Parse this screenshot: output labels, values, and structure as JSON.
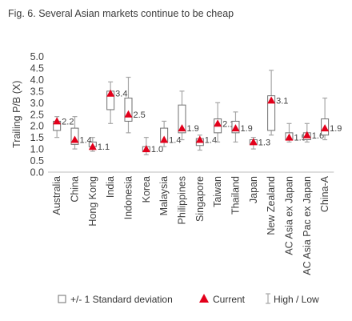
{
  "title": "Fig. 6. Several Asian markets continue to be cheap",
  "colors": {
    "box": "#6f6f6f",
    "whisker": "#a6a6a6",
    "marker": "#e3001b",
    "text": "#404040"
  },
  "chart_data": {
    "type": "box",
    "title": "Fig. 6. Several Asian markets continue to be cheap",
    "ylabel": "Trailing P/B (X)",
    "ylim": [
      0,
      5
    ],
    "yticks": [
      "0.0",
      "0.5",
      "1.0",
      "1.5",
      "2.0",
      "2.5",
      "3.0",
      "3.5",
      "4.0",
      "4.5",
      "5.0"
    ],
    "categories": [
      "Australia",
      "China",
      "Hong Kong",
      "India",
      "Indonesia",
      "Korea",
      "Malaysia",
      "Philippines",
      "Singapore",
      "Taiwan",
      "Thailand",
      "Japan",
      "New Zealand",
      "AC Asia ex Japan",
      "AC Asia Pac ex Japan",
      "China-A"
    ],
    "series": [
      {
        "name": "+/- 1 Standard deviation",
        "lower": [
          1.8,
          1.2,
          1.1,
          2.7,
          2.2,
          0.9,
          1.3,
          1.7,
          1.15,
          1.7,
          1.7,
          1.2,
          1.8,
          1.4,
          1.4,
          1.6
        ],
        "upper": [
          2.2,
          1.9,
          1.3,
          3.5,
          3.2,
          1.1,
          1.9,
          2.9,
          1.45,
          2.3,
          2.2,
          1.4,
          3.3,
          1.7,
          1.7,
          2.3
        ]
      },
      {
        "name": "Current",
        "values": [
          2.2,
          1.4,
          1.1,
          3.4,
          2.5,
          1.0,
          1.4,
          1.9,
          1.4,
          2.1,
          1.9,
          1.3,
          3.1,
          1.5,
          1.6,
          1.9
        ],
        "labels": [
          "2.2",
          "1.4",
          "1.1",
          "3.4",
          "2.5",
          "1.0",
          "1.4",
          "1.9",
          "1.4",
          "2.1",
          "1.9",
          "1.3",
          "3.1",
          "1.5",
          "1.6",
          "1.9"
        ]
      },
      {
        "name": "High / Low",
        "low": [
          1.5,
          1.0,
          0.9,
          2.1,
          1.7,
          0.75,
          1.1,
          1.4,
          0.95,
          1.3,
          1.3,
          1.0,
          1.6,
          1.3,
          1.3,
          1.4
        ],
        "high": [
          2.4,
          2.4,
          1.5,
          3.9,
          4.1,
          1.5,
          2.2,
          3.5,
          1.6,
          3.0,
          2.6,
          1.5,
          4.4,
          2.1,
          2.1,
          3.2
        ]
      }
    ],
    "legend": {
      "position": "bottom",
      "items": [
        "+/- 1 Standard deviation",
        "Current",
        "High / Low"
      ]
    },
    "grid": false
  }
}
